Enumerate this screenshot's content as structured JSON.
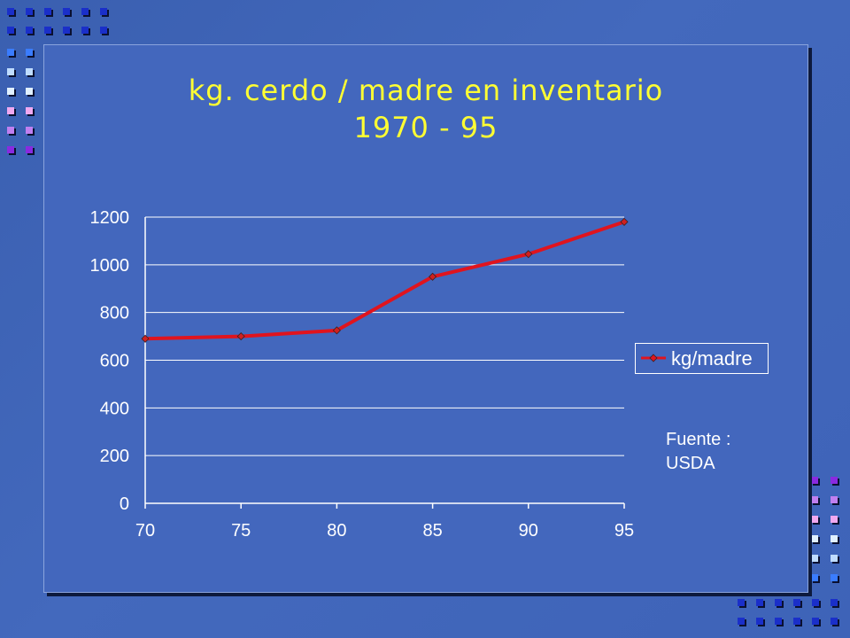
{
  "title": {
    "line1": "kg. cerdo / madre en inventario",
    "line2": "1970 - 95"
  },
  "source": {
    "line1": "Fuente :",
    "line2": "USDA"
  },
  "colors": {
    "background": "#4367bd",
    "title": "#ffff33",
    "series": "#e0141e",
    "text": "#ffffff"
  },
  "chart_data": {
    "type": "line",
    "title": "kg. cerdo / madre en inventario 1970 - 95",
    "xlabel": "",
    "ylabel": "",
    "categories": [
      "70",
      "75",
      "80",
      "85",
      "90",
      "95"
    ],
    "yticks": [
      "0",
      "200",
      "400",
      "600",
      "800",
      "1000",
      "1200"
    ],
    "ylim": [
      0,
      1200
    ],
    "grid": true,
    "legend_position": "right",
    "series": [
      {
        "name": "kg/madre",
        "values": [
          690,
          700,
          725,
          950,
          1045,
          1180
        ]
      }
    ]
  }
}
